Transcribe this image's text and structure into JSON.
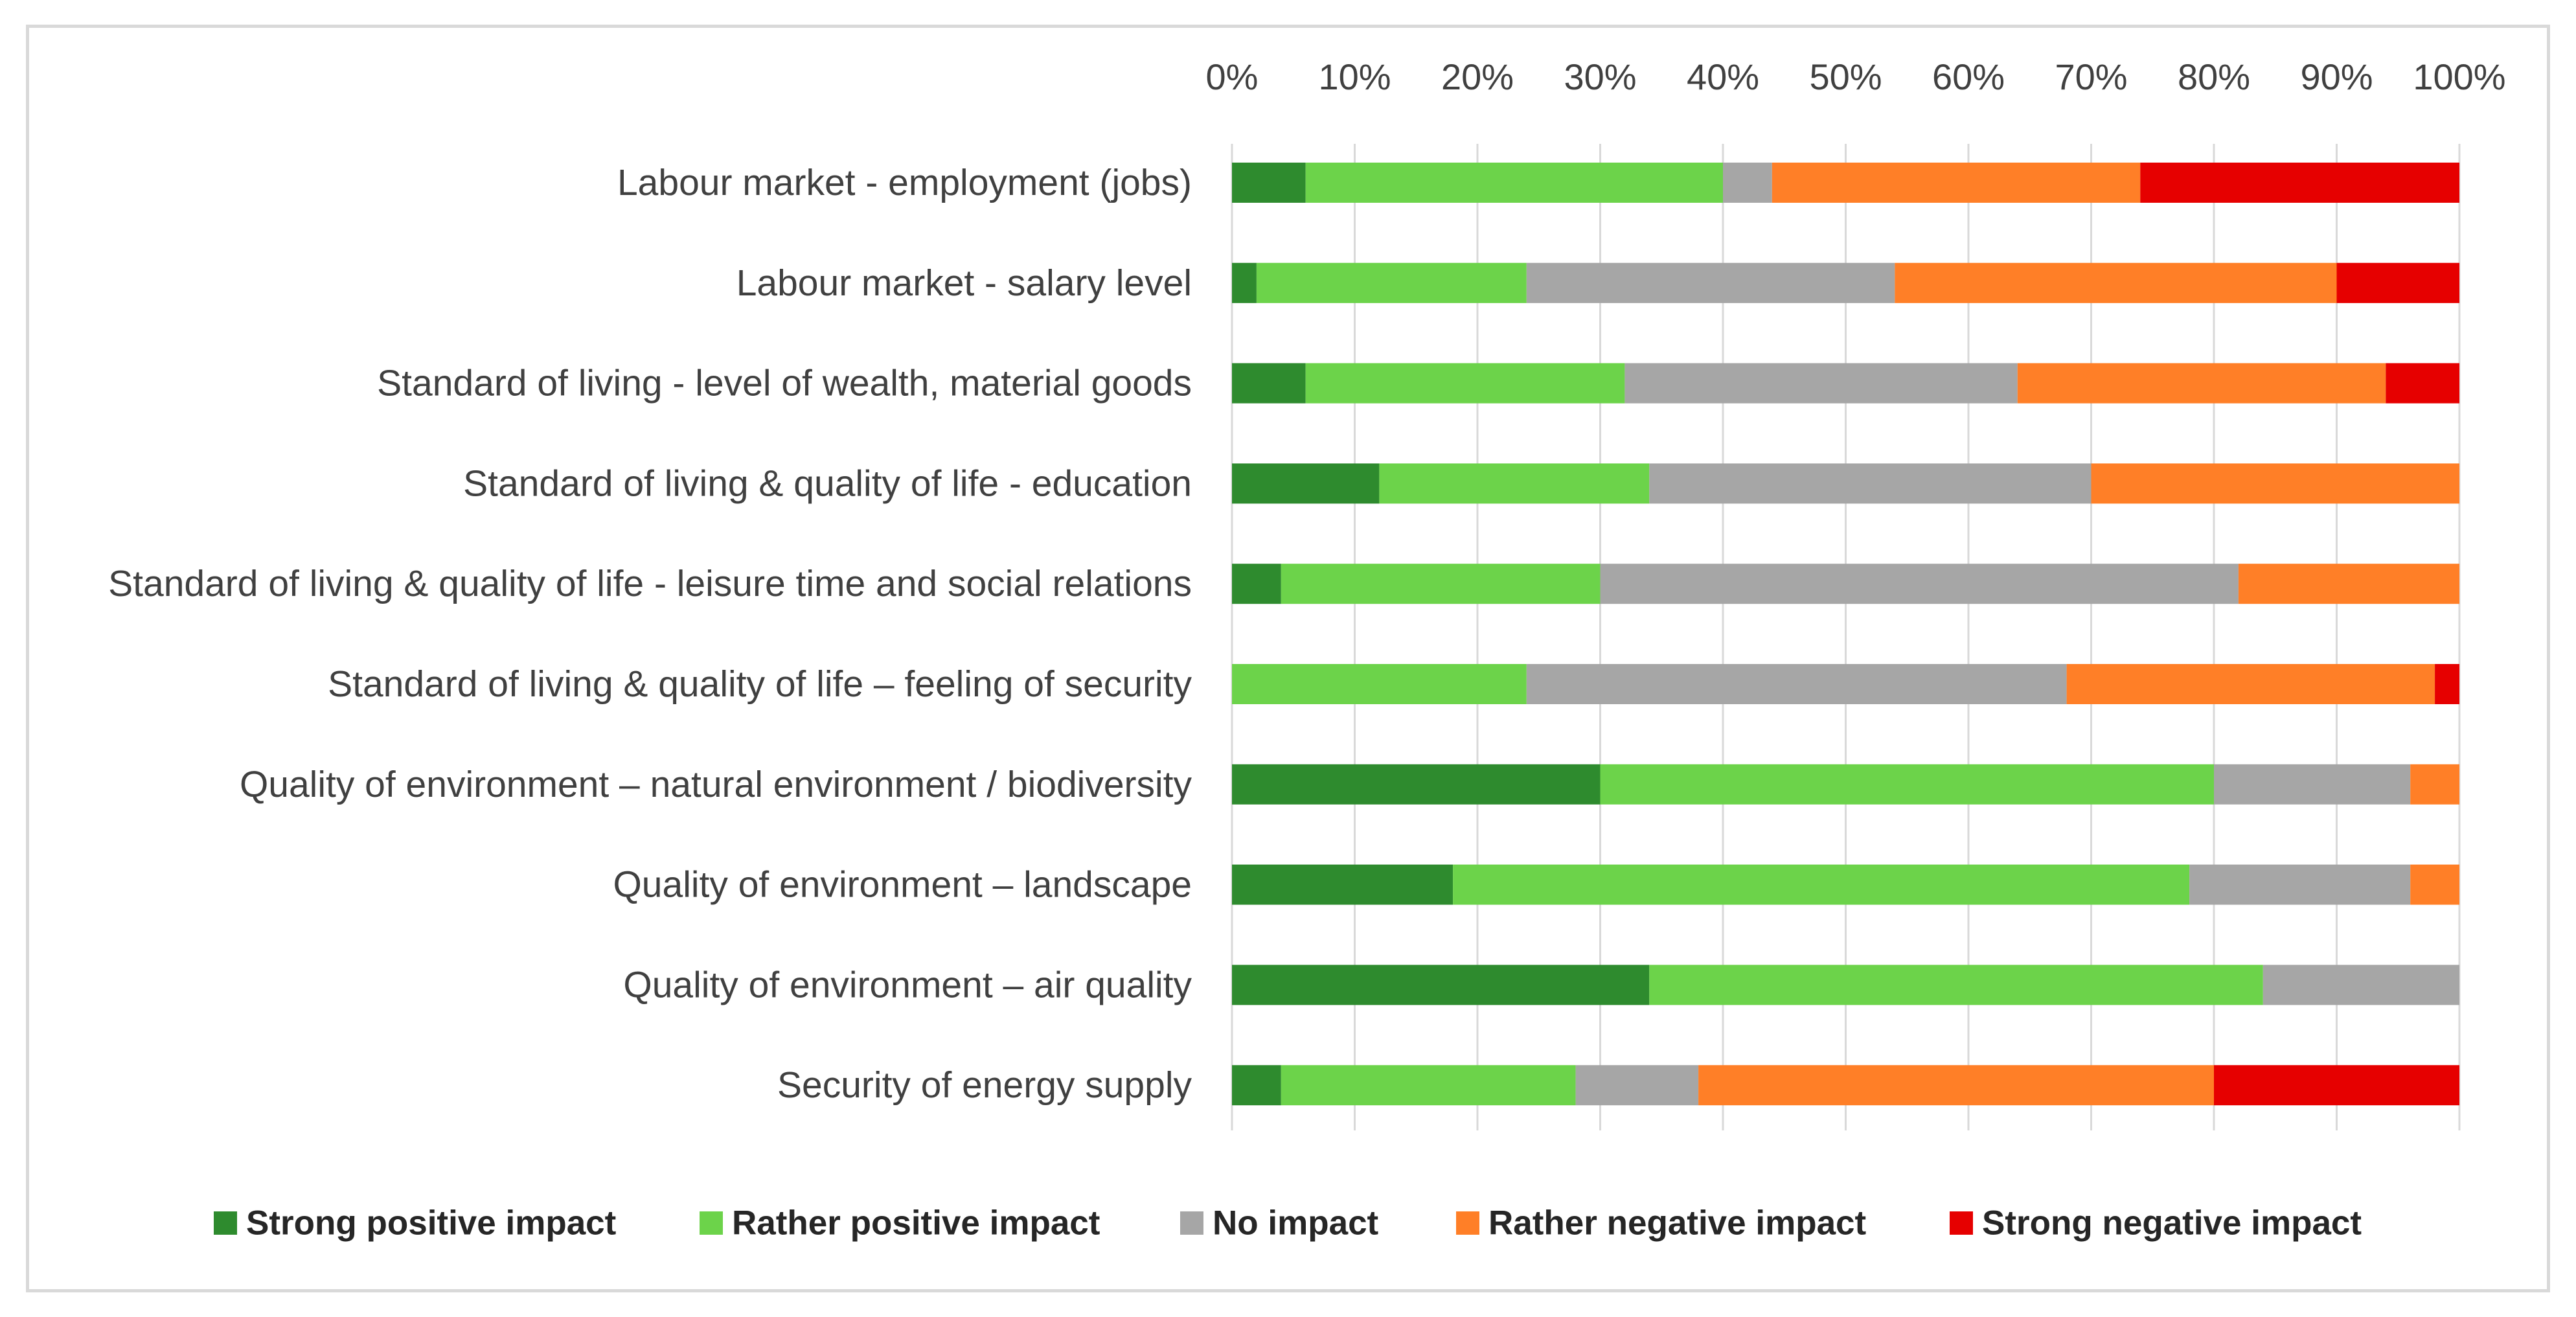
{
  "chart_data": {
    "type": "bar",
    "orientation": "horizontal",
    "stacking": "percent",
    "title": "",
    "xlabel": "",
    "ylabel": "",
    "xlim": [
      0,
      100
    ],
    "x_ticks": [
      "0%",
      "10%",
      "20%",
      "30%",
      "40%",
      "50%",
      "60%",
      "70%",
      "80%",
      "90%",
      "100%"
    ],
    "grid": true,
    "legend_position": "bottom",
    "categories": [
      "Labour market - employment (jobs)",
      "Labour market - salary level",
      "Standard of living - level of wealth, material goods",
      "Standard of living & quality of life - education",
      "Standard of living & quality of life - leisure time and social relations",
      "Standard of living & quality of life – feeling of security",
      "Quality of environment – natural environment / biodiversity",
      "Quality of environment – landscape",
      "Quality of environment – air quality",
      "Security of energy supply"
    ],
    "series": [
      {
        "name": "Strong positive impact",
        "color": "#2e8b2e",
        "values": [
          6,
          2,
          6,
          12,
          4,
          0,
          30,
          18,
          34,
          4
        ]
      },
      {
        "name": "Rather positive impact",
        "color": "#6cd34a",
        "values": [
          34,
          22,
          26,
          22,
          26,
          24,
          50,
          60,
          50,
          24
        ]
      },
      {
        "name": "No impact",
        "color": "#a6a6a6",
        "values": [
          4,
          30,
          32,
          36,
          52,
          44,
          16,
          18,
          16,
          10
        ]
      },
      {
        "name": "Rather negative impact",
        "color": "#ff7f27",
        "values": [
          30,
          36,
          30,
          30,
          18,
          30,
          4,
          4,
          0,
          42
        ]
      },
      {
        "name": "Strong negative impact",
        "color": "#e60000",
        "values": [
          26,
          10,
          6,
          0,
          0,
          2,
          0,
          0,
          0,
          20
        ]
      }
    ]
  }
}
